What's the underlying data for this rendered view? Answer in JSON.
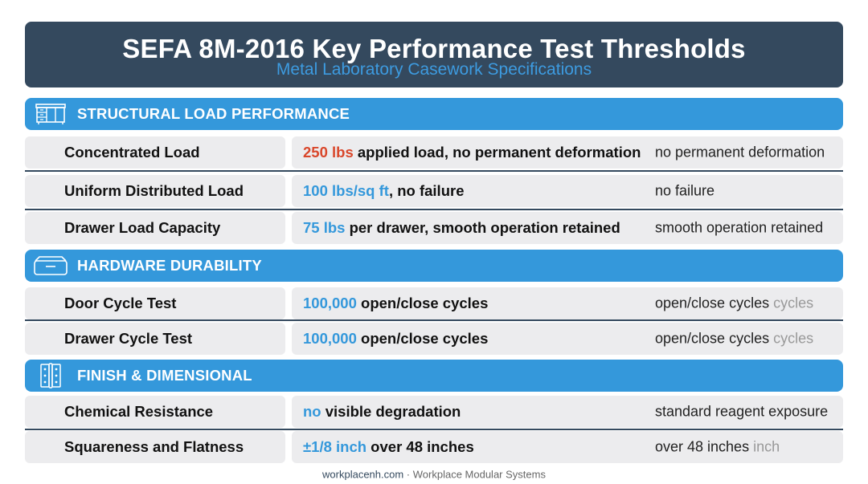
{
  "header": {
    "title": "SEFA 8M-2016 Key Performance Test Thresholds",
    "subtitle": "Metal Laboratory Casework Specifications"
  },
  "sections": [
    {
      "label": "STRUCTURAL LOAD PERFORMANCE",
      "icon": "lab-cabinet-icon",
      "rows": [
        {
          "name": "Concentrated Load",
          "highlight": "250 lbs",
          "highlight_color": "#d9472b",
          "rest": " applied load, no permanent deformation",
          "note": "no permanent deformation",
          "note_unit": ""
        },
        {
          "name": "Uniform Distributed Load",
          "highlight": "100 lbs/sq ft",
          "highlight_color": "#3498db",
          "rest": ", no failure",
          "note": "no failure",
          "note_unit": ""
        },
        {
          "name": "Drawer Load Capacity",
          "highlight": "75 lbs",
          "highlight_color": "#3498db",
          "rest": " per drawer, smooth operation retained",
          "note": "smooth operation retained",
          "note_unit": ""
        }
      ]
    },
    {
      "label": "HARDWARE DURABILITY",
      "icon": "drawer-icon",
      "rows": [
        {
          "name": "Door Cycle Test",
          "highlight": "100,000",
          "highlight_color": "#3498db",
          "rest": " open/close cycles",
          "note": "open/close cycles",
          "note_unit": " cycles"
        },
        {
          "name": "Drawer Cycle Test",
          "highlight": "100,000",
          "highlight_color": "#3498db",
          "rest": " open/close cycles",
          "note": "open/close cycles",
          "note_unit": " cycles"
        }
      ]
    },
    {
      "label": "FINISH & DIMENSIONAL",
      "icon": "hinge-icon",
      "rows": [
        {
          "name": "Chemical Resistance",
          "highlight": "no",
          "highlight_color": "#3498db",
          "rest": " visible degradation",
          "note": "standard reagent exposure",
          "note_unit": ""
        },
        {
          "name": "Squareness and Flatness",
          "highlight": "±1/8 inch",
          "highlight_color": "#3498db",
          "rest": " over 48 inches",
          "note": "over 48 inches",
          "note_unit": " inch"
        }
      ]
    }
  ],
  "footer": {
    "site": "workplacenh.com",
    "separator": " · ",
    "company": "Workplace Modular Systems"
  }
}
